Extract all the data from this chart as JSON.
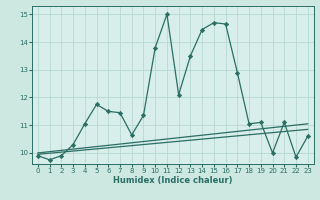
{
  "xlabel": "Humidex (Indice chaleur)",
  "bg_color": "#cce8e0",
  "plot_bg_color": "#d8eeea",
  "grid_color": "#b8d8d2",
  "line_color": "#2a6e64",
  "xlim": [
    -0.5,
    23.5
  ],
  "ylim": [
    9.6,
    15.3
  ],
  "xticks": [
    0,
    1,
    2,
    3,
    4,
    5,
    6,
    7,
    8,
    9,
    10,
    11,
    12,
    13,
    14,
    15,
    16,
    17,
    18,
    19,
    20,
    21,
    22,
    23
  ],
  "yticks": [
    10,
    11,
    12,
    13,
    14,
    15
  ],
  "main_x": [
    0,
    1,
    2,
    3,
    4,
    5,
    6,
    7,
    8,
    9,
    10,
    11,
    12,
    13,
    14,
    15,
    16,
    17,
    18,
    19,
    20,
    21,
    22,
    23
  ],
  "main_y": [
    9.9,
    9.75,
    9.9,
    10.3,
    11.05,
    11.75,
    11.5,
    11.45,
    10.65,
    11.35,
    13.8,
    15.0,
    12.1,
    13.5,
    14.45,
    14.7,
    14.65,
    12.9,
    11.05,
    11.1,
    10.0,
    11.1,
    9.85,
    10.6
  ],
  "trend1_x": [
    0,
    23
  ],
  "trend1_y": [
    10.0,
    11.05
  ],
  "trend2_x": [
    0,
    23
  ],
  "trend2_y": [
    9.95,
    10.85
  ]
}
